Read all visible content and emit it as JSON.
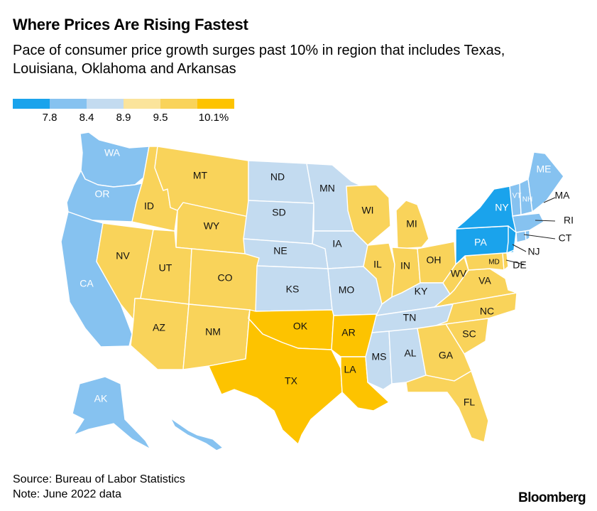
{
  "header": {
    "title": "Where Prices Are Rising Fastest",
    "subtitle": "Pace of consumer price growth surges past 10% in region that includes Texas, Louisiana, Oklahoma and Arkansas"
  },
  "legend": {
    "colors": [
      "#1aa3ec",
      "#86c2f0",
      "#c3dbf0",
      "#fbe49b",
      "#f9d35a",
      "#fdc300"
    ],
    "ticks": [
      "7.8",
      "8.4",
      "8.9",
      "9.5",
      "10.1%"
    ]
  },
  "colors": {
    "dark_blue": "#1aa3ec",
    "mid_blue": "#86c2f0",
    "light_blue": "#c3dbf0",
    "yellow": "#f9d35a",
    "dark_yellow": "#fdc300"
  },
  "map": {
    "states": [
      {
        "abbr": "WA",
        "color": "mid_blue"
      },
      {
        "abbr": "OR",
        "color": "mid_blue"
      },
      {
        "abbr": "CA",
        "color": "mid_blue"
      },
      {
        "abbr": "AK",
        "color": "mid_blue"
      },
      {
        "abbr": "HI",
        "color": "mid_blue"
      },
      {
        "abbr": "ID",
        "color": "yellow"
      },
      {
        "abbr": "MT",
        "color": "yellow"
      },
      {
        "abbr": "WY",
        "color": "yellow"
      },
      {
        "abbr": "NV",
        "color": "yellow"
      },
      {
        "abbr": "UT",
        "color": "yellow"
      },
      {
        "abbr": "CO",
        "color": "yellow"
      },
      {
        "abbr": "AZ",
        "color": "yellow"
      },
      {
        "abbr": "NM",
        "color": "yellow"
      },
      {
        "abbr": "ND",
        "color": "light_blue"
      },
      {
        "abbr": "SD",
        "color": "light_blue"
      },
      {
        "abbr": "NE",
        "color": "light_blue"
      },
      {
        "abbr": "KS",
        "color": "light_blue"
      },
      {
        "abbr": "MN",
        "color": "light_blue"
      },
      {
        "abbr": "IA",
        "color": "light_blue"
      },
      {
        "abbr": "MO",
        "color": "light_blue"
      },
      {
        "abbr": "OK",
        "color": "dark_yellow"
      },
      {
        "abbr": "TX",
        "color": "dark_yellow"
      },
      {
        "abbr": "AR",
        "color": "dark_yellow"
      },
      {
        "abbr": "LA",
        "color": "dark_yellow"
      },
      {
        "abbr": "WI",
        "color": "yellow"
      },
      {
        "abbr": "IL",
        "color": "yellow"
      },
      {
        "abbr": "MI",
        "color": "yellow"
      },
      {
        "abbr": "IN",
        "color": "yellow"
      },
      {
        "abbr": "OH",
        "color": "yellow"
      },
      {
        "abbr": "KY",
        "color": "light_blue"
      },
      {
        "abbr": "TN",
        "color": "light_blue"
      },
      {
        "abbr": "MS",
        "color": "light_blue"
      },
      {
        "abbr": "AL",
        "color": "light_blue"
      },
      {
        "abbr": "WV",
        "color": "yellow"
      },
      {
        "abbr": "VA",
        "color": "yellow"
      },
      {
        "abbr": "NC",
        "color": "yellow"
      },
      {
        "abbr": "SC",
        "color": "yellow"
      },
      {
        "abbr": "GA",
        "color": "yellow"
      },
      {
        "abbr": "FL",
        "color": "yellow"
      },
      {
        "abbr": "MD",
        "color": "yellow"
      },
      {
        "abbr": "DE",
        "color": "yellow"
      },
      {
        "abbr": "PA",
        "color": "dark_blue"
      },
      {
        "abbr": "NY",
        "color": "dark_blue"
      },
      {
        "abbr": "NJ",
        "color": "dark_blue"
      },
      {
        "abbr": "CT",
        "color": "mid_blue"
      },
      {
        "abbr": "RI",
        "color": "mid_blue"
      },
      {
        "abbr": "MA",
        "color": "mid_blue"
      },
      {
        "abbr": "VT",
        "color": "mid_blue"
      },
      {
        "abbr": "NH",
        "color": "mid_blue"
      },
      {
        "abbr": "ME",
        "color": "mid_blue"
      }
    ]
  },
  "footer": {
    "source": "Source: Bureau of Labor Statistics",
    "note": "Note: June 2022 data",
    "brand": "Bloomberg"
  }
}
